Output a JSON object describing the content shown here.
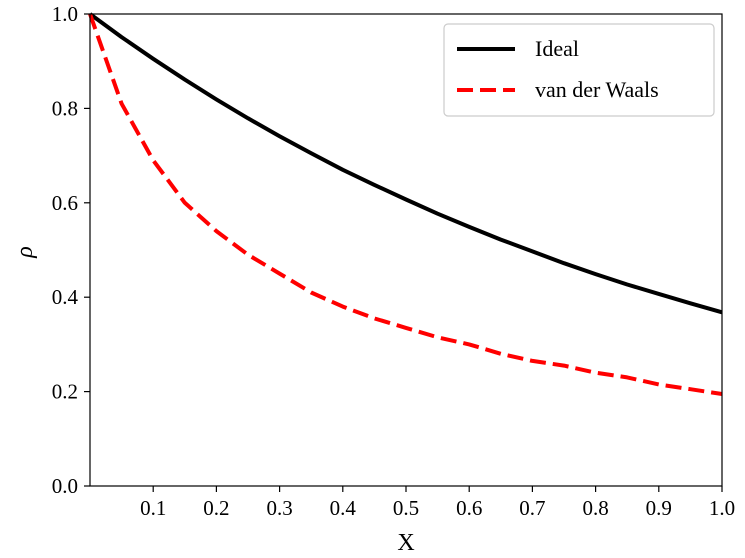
{
  "chart_data": {
    "type": "line",
    "xlabel": "X",
    "ylabel": "ρ",
    "xlim": [
      0,
      1.0
    ],
    "ylim": [
      0,
      1.0
    ],
    "xticks": [
      "0.1",
      "0.2",
      "0.3",
      "0.4",
      "0.5",
      "0.6",
      "0.7",
      "0.8",
      "0.9",
      "1.0"
    ],
    "yticks": [
      "0.0",
      "0.2",
      "0.4",
      "0.6",
      "0.8",
      "1.0"
    ],
    "grid": false,
    "legend_position": "top-right",
    "x": [
      0,
      0.05,
      0.1,
      0.15,
      0.2,
      0.25,
      0.3,
      0.35,
      0.4,
      0.45,
      0.5,
      0.55,
      0.6,
      0.65,
      0.7,
      0.75,
      0.8,
      0.85,
      0.9,
      0.95,
      1.0
    ],
    "series": [
      {
        "name": "Ideal",
        "color": "#000000",
        "style": "solid",
        "values": [
          1.0,
          0.951,
          0.905,
          0.861,
          0.819,
          0.779,
          0.741,
          0.705,
          0.67,
          0.638,
          0.607,
          0.577,
          0.549,
          0.522,
          0.497,
          0.472,
          0.449,
          0.427,
          0.407,
          0.387,
          0.368
        ]
      },
      {
        "name": "van der Waals",
        "color": "#ff0000",
        "style": "dashed",
        "values": [
          1.0,
          0.81,
          0.69,
          0.6,
          0.54,
          0.49,
          0.45,
          0.41,
          0.38,
          0.355,
          0.335,
          0.315,
          0.3,
          0.28,
          0.265,
          0.255,
          0.24,
          0.23,
          0.215,
          0.205,
          0.195
        ]
      }
    ]
  }
}
